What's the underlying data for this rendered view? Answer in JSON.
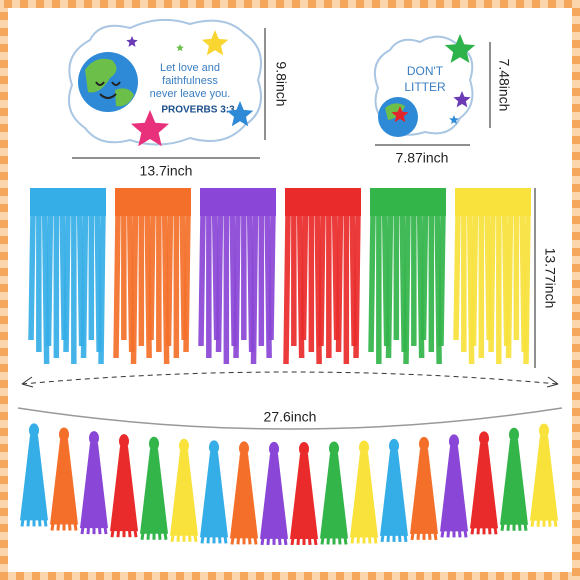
{
  "card_1": {
    "lines": [
      "Let love and",
      "faithfulness",
      "never leave you."
    ],
    "reference": "PROVERBS 3:3",
    "width": "13.7inch",
    "height": "9.8inch"
  },
  "card_2": {
    "lines": [
      "DON'T",
      "LITTER"
    ],
    "width": "7.87inch",
    "height": "7.48inch"
  },
  "fringe": {
    "height": "13.77inch"
  },
  "garland": {
    "length": "27.6inch"
  }
}
